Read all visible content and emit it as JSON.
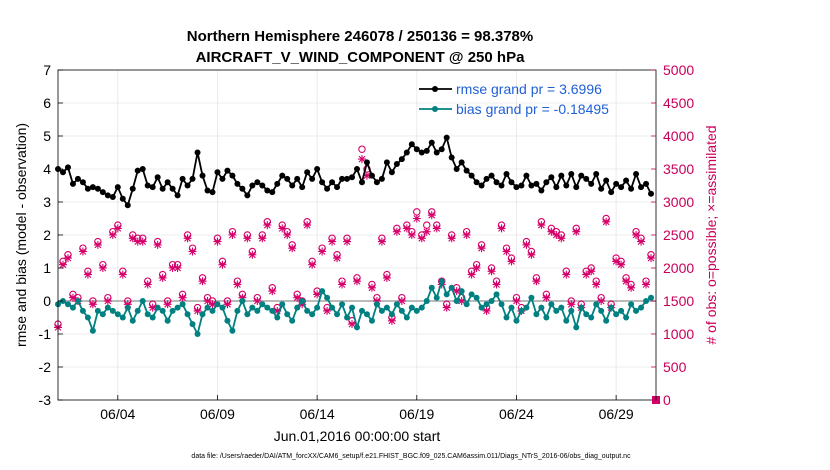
{
  "chart_data": {
    "type": "line",
    "title": "Northern Hemisphere 246078 / 250136 = 98.378%",
    "subtitle": "AIRCRAFT_V_WIND_COMPONENT @ 250 hPa",
    "xlabel": "Jun.01,2016 00:00:00 start",
    "ylabel": "rmse and bias (model - observation)",
    "y2label": "# of obs: o=possible; ×=assimilated",
    "footnote": "data file: /Users/raeder/DAI/ATM_forcXX/CAM6_setup/f.e21.FHIST_BGC.f09_025.CAM6assim.011/Diags_NTrS_2016-06/obs_diag_output.nc",
    "xlim": [
      1.0,
      31.0
    ],
    "ylim": [
      -3,
      7
    ],
    "y2lim": [
      0,
      5000
    ],
    "x_ticks": [
      4,
      9,
      14,
      19,
      24,
      29
    ],
    "x_tick_labels": [
      "06/04",
      "06/09",
      "06/14",
      "06/19",
      "06/24",
      "06/29"
    ],
    "y_ticks": [
      -3,
      -2,
      -1,
      0,
      1,
      2,
      3,
      4,
      5,
      6,
      7
    ],
    "y2_ticks": [
      0,
      500,
      1000,
      1500,
      2000,
      2500,
      3000,
      3500,
      4000,
      4500,
      5000
    ],
    "legend": {
      "position": "top-right",
      "entries": [
        "rmse grand pr = 3.6996",
        "bias grand pr = -0.18495"
      ]
    },
    "colors": {
      "rmse": "#000000",
      "bias": "#008080",
      "obs": "#d6006a",
      "zero_line": "#b0b0b0",
      "legend_text": "#1f5fd6"
    },
    "series": [
      {
        "name": "rmse",
        "x": [
          1.0,
          1.25,
          1.5,
          1.75,
          2.0,
          2.25,
          2.5,
          2.75,
          3.0,
          3.25,
          3.5,
          3.75,
          4.0,
          4.25,
          4.5,
          4.75,
          5.0,
          5.25,
          5.5,
          5.75,
          6.0,
          6.25,
          6.5,
          6.75,
          7.0,
          7.25,
          7.5,
          7.75,
          8.0,
          8.25,
          8.5,
          8.75,
          9.0,
          9.25,
          9.5,
          9.75,
          10.0,
          10.25,
          10.5,
          10.75,
          11.0,
          11.25,
          11.5,
          11.75,
          12.0,
          12.25,
          12.5,
          12.75,
          13.0,
          13.25,
          13.5,
          13.75,
          14.0,
          14.25,
          14.5,
          14.75,
          15.0,
          15.25,
          15.5,
          15.75,
          16.0,
          16.25,
          16.5,
          16.75,
          17.0,
          17.25,
          17.5,
          17.75,
          18.0,
          18.25,
          18.5,
          18.75,
          19.0,
          19.25,
          19.5,
          19.75,
          20.0,
          20.25,
          20.5,
          20.75,
          21.0,
          21.25,
          21.5,
          21.75,
          22.0,
          22.25,
          22.5,
          22.75,
          23.0,
          23.25,
          23.5,
          23.75,
          24.0,
          24.25,
          24.5,
          24.75,
          25.0,
          25.25,
          25.5,
          25.75,
          26.0,
          26.25,
          26.5,
          26.75,
          27.0,
          27.25,
          27.5,
          27.75,
          28.0,
          28.25,
          28.5,
          28.75,
          29.0,
          29.25,
          29.5,
          29.75,
          30.0,
          30.25,
          30.5,
          30.75
        ],
        "values": [
          4.0,
          3.9,
          4.05,
          3.55,
          3.7,
          3.6,
          3.4,
          3.45,
          3.4,
          3.3,
          3.2,
          3.15,
          3.45,
          3.1,
          2.9,
          3.4,
          3.95,
          4.0,
          3.5,
          3.45,
          3.75,
          3.4,
          3.6,
          3.4,
          3.2,
          3.7,
          3.5,
          3.7,
          4.5,
          3.8,
          3.35,
          3.3,
          3.9,
          3.7,
          3.95,
          3.8,
          3.55,
          3.4,
          3.2,
          3.5,
          3.6,
          3.5,
          3.35,
          3.3,
          3.55,
          3.8,
          3.7,
          3.5,
          3.7,
          3.45,
          3.9,
          3.7,
          4.0,
          3.6,
          3.4,
          3.6,
          3.45,
          3.7,
          3.7,
          3.75,
          4.0,
          3.6,
          4.2,
          3.8,
          3.6,
          3.7,
          4.2,
          3.9,
          4.15,
          4.3,
          4.5,
          4.75,
          4.6,
          4.5,
          4.55,
          4.8,
          4.5,
          4.6,
          4.95,
          4.35,
          4.0,
          4.2,
          3.95,
          3.8,
          3.6,
          3.5,
          3.7,
          3.8,
          3.6,
          3.5,
          3.85,
          3.6,
          3.45,
          3.5,
          3.8,
          3.5,
          3.55,
          3.35,
          3.6,
          3.75,
          3.45,
          3.8,
          3.5,
          3.85,
          3.45,
          3.8,
          3.7,
          3.55,
          3.85,
          3.4,
          3.65,
          3.3,
          3.55,
          3.45,
          3.65,
          3.4,
          3.85,
          3.45,
          3.55,
          3.25
        ]
      },
      {
        "name": "bias",
        "x": [
          1.0,
          1.25,
          1.5,
          1.75,
          2.0,
          2.25,
          2.5,
          2.75,
          3.0,
          3.25,
          3.5,
          3.75,
          4.0,
          4.25,
          4.5,
          4.75,
          5.0,
          5.25,
          5.5,
          5.75,
          6.0,
          6.25,
          6.5,
          6.75,
          7.0,
          7.25,
          7.5,
          7.75,
          8.0,
          8.25,
          8.5,
          8.75,
          9.0,
          9.25,
          9.5,
          9.75,
          10.0,
          10.25,
          10.5,
          10.75,
          11.0,
          11.25,
          11.5,
          11.75,
          12.0,
          12.25,
          12.5,
          12.75,
          13.0,
          13.25,
          13.5,
          13.75,
          14.0,
          14.25,
          14.5,
          14.75,
          15.0,
          15.25,
          15.5,
          15.75,
          16.0,
          16.25,
          16.5,
          16.75,
          17.0,
          17.25,
          17.5,
          17.75,
          18.0,
          18.25,
          18.5,
          18.75,
          19.0,
          19.25,
          19.5,
          19.75,
          20.0,
          20.25,
          20.5,
          20.75,
          21.0,
          21.25,
          21.5,
          21.75,
          22.0,
          22.25,
          22.5,
          22.75,
          23.0,
          23.25,
          23.5,
          23.75,
          24.0,
          24.25,
          24.5,
          24.75,
          25.0,
          25.25,
          25.5,
          25.75,
          26.0,
          26.25,
          26.5,
          26.75,
          27.0,
          27.25,
          27.5,
          27.75,
          28.0,
          28.25,
          28.5,
          28.75,
          29.0,
          29.25,
          29.5,
          29.75,
          30.0,
          30.25,
          30.5,
          30.75
        ],
        "values": [
          -0.1,
          0.0,
          -0.1,
          -0.2,
          0.0,
          -0.3,
          -0.5,
          -0.9,
          -0.3,
          -0.4,
          -0.2,
          -0.3,
          -0.4,
          -0.5,
          -0.2,
          -0.6,
          -0.3,
          0.0,
          -0.4,
          -0.5,
          -0.2,
          -0.3,
          -0.6,
          -0.3,
          -0.2,
          -0.1,
          -0.4,
          -0.7,
          -1.0,
          -0.4,
          -0.2,
          -0.3,
          -0.1,
          -0.2,
          -0.6,
          -0.9,
          -0.3,
          0.0,
          -0.4,
          -0.2,
          -0.3,
          -0.1,
          -0.2,
          -0.3,
          -0.5,
          -0.1,
          -0.4,
          -0.6,
          -0.2,
          0.0,
          -0.3,
          -0.4,
          -0.2,
          0.3,
          0.1,
          -0.2,
          -0.4,
          -0.1,
          -0.5,
          -0.2,
          -0.8,
          -0.3,
          -0.4,
          -0.6,
          -0.1,
          -0.3,
          -0.2,
          -0.4,
          -0.1,
          -0.3,
          -0.5,
          -0.2,
          -0.3,
          -0.2,
          0.0,
          0.4,
          0.1,
          0.6,
          0.2,
          0.4,
          0.0,
          0.3,
          -0.1,
          0.2,
          0.1,
          -0.2,
          -0.1,
          0.0,
          0.2,
          -0.1,
          -0.5,
          -0.2,
          -0.6,
          -0.3,
          -0.2,
          0.1,
          -0.4,
          -0.2,
          -0.5,
          -0.1,
          -0.3,
          -0.2,
          -0.6,
          -0.3,
          -0.8,
          -0.2,
          -0.4,
          -0.5,
          -0.1,
          -0.3,
          -0.6,
          -0.2,
          -0.4,
          -0.3,
          -0.5,
          -0.1,
          -0.3,
          -0.2,
          0.0,
          0.1
        ]
      },
      {
        "name": "obs_possible",
        "x": [
          1.0,
          1.25,
          1.5,
          1.75,
          2.0,
          2.25,
          2.5,
          2.75,
          3.0,
          3.25,
          3.5,
          3.75,
          4.0,
          4.25,
          4.5,
          4.75,
          5.0,
          5.25,
          5.5,
          5.75,
          6.0,
          6.25,
          6.5,
          6.75,
          7.0,
          7.25,
          7.5,
          7.75,
          8.0,
          8.25,
          8.5,
          8.75,
          9.0,
          9.25,
          9.5,
          9.75,
          10.0,
          10.25,
          10.5,
          10.75,
          11.0,
          11.25,
          11.5,
          11.75,
          12.0,
          12.25,
          12.5,
          12.75,
          13.0,
          13.25,
          13.5,
          13.75,
          14.0,
          14.25,
          14.5,
          14.75,
          15.0,
          15.25,
          15.5,
          15.75,
          16.0,
          16.25,
          16.5,
          16.75,
          17.0,
          17.25,
          17.5,
          17.75,
          18.0,
          18.25,
          18.5,
          18.75,
          19.0,
          19.25,
          19.5,
          19.75,
          20.0,
          20.25,
          20.5,
          20.75,
          21.0,
          21.25,
          21.5,
          21.75,
          22.0,
          22.25,
          22.5,
          22.75,
          23.0,
          23.25,
          23.5,
          23.75,
          24.0,
          24.25,
          24.5,
          24.75,
          25.0,
          25.25,
          25.5,
          25.75,
          26.0,
          26.25,
          26.5,
          26.75,
          27.0,
          27.25,
          27.5,
          27.75,
          28.0,
          28.25,
          28.5,
          28.75,
          29.0,
          29.25,
          29.5,
          29.75,
          30.0,
          30.25,
          30.5,
          30.75
        ],
        "values": [
          1150,
          2100,
          2200,
          1600,
          1550,
          2300,
          1950,
          1500,
          2400,
          2050,
          1550,
          2550,
          2650,
          1950,
          1500,
          2500,
          2450,
          2450,
          1800,
          1450,
          2400,
          1900,
          1500,
          2050,
          2050,
          1600,
          2500,
          2300,
          1400,
          1850,
          1550,
          1500,
          2450,
          2100,
          1500,
          2550,
          1800,
          1600,
          2500,
          2250,
          1550,
          2500,
          2700,
          1700,
          1400,
          2650,
          2550,
          2350,
          1600,
          1500,
          2700,
          2100,
          1650,
          2300,
          1400,
          2450,
          2200,
          1800,
          2450,
          1200,
          1850,
          3800,
          3500,
          1750,
          1550,
          2450,
          1900,
          1250,
          2600,
          1550,
          2650,
          2550,
          2850,
          2500,
          2650,
          2850,
          2650,
          1800,
          1450,
          2500,
          1700,
          1550,
          2550,
          1950,
          2050,
          2350,
          1400,
          2000,
          1800,
          2650,
          2300,
          2150,
          1550,
          1400,
          2400,
          2250,
          1850,
          2700,
          1600,
          2600,
          2550,
          2500,
          1950,
          1500,
          2600,
          1450,
          1950,
          2000,
          1800,
          1550,
          2750,
          1450,
          2150,
          2100,
          1850,
          1750,
          2550,
          2450,
          1800,
          2200
        ]
      },
      {
        "name": "obs_assimilated",
        "x": [
          1.0,
          1.25,
          1.5,
          1.75,
          2.0,
          2.25,
          2.5,
          2.75,
          3.0,
          3.25,
          3.5,
          3.75,
          4.0,
          4.25,
          4.5,
          4.75,
          5.0,
          5.25,
          5.5,
          5.75,
          6.0,
          6.25,
          6.5,
          6.75,
          7.0,
          7.25,
          7.5,
          7.75,
          8.0,
          8.25,
          8.5,
          8.75,
          9.0,
          9.25,
          9.5,
          9.75,
          10.0,
          10.25,
          10.5,
          10.75,
          11.0,
          11.25,
          11.5,
          11.75,
          12.0,
          12.25,
          12.5,
          12.75,
          13.0,
          13.25,
          13.5,
          13.75,
          14.0,
          14.25,
          14.5,
          14.75,
          15.0,
          15.25,
          15.5,
          15.75,
          16.0,
          16.25,
          16.5,
          16.75,
          17.0,
          17.25,
          17.5,
          17.75,
          18.0,
          18.25,
          18.5,
          18.75,
          19.0,
          19.25,
          19.5,
          19.75,
          20.0,
          20.25,
          20.5,
          20.75,
          21.0,
          21.25,
          21.5,
          21.75,
          22.0,
          22.25,
          22.5,
          22.75,
          23.0,
          23.25,
          23.5,
          23.75,
          24.0,
          24.25,
          24.5,
          24.75,
          25.0,
          25.25,
          25.5,
          25.75,
          26.0,
          26.25,
          26.5,
          26.75,
          27.0,
          27.25,
          27.5,
          27.75,
          28.0,
          28.25,
          28.5,
          28.75,
          29.0,
          29.25,
          29.5,
          29.75,
          30.0,
          30.25,
          30.5,
          30.75
        ],
        "values": [
          1100,
          2050,
          2150,
          1550,
          1500,
          2250,
          1900,
          1450,
          2350,
          2000,
          1500,
          2500,
          2600,
          1900,
          1450,
          2450,
          2400,
          2400,
          1750,
          1400,
          2350,
          1850,
          1450,
          2000,
          2000,
          1550,
          2450,
          2250,
          1350,
          1800,
          1500,
          1450,
          2400,
          2050,
          1450,
          2500,
          1750,
          1550,
          2450,
          2200,
          1500,
          2450,
          2650,
          1650,
          1350,
          2600,
          2500,
          2300,
          1550,
          1450,
          2650,
          2050,
          1600,
          2250,
          1350,
          2400,
          2150,
          1750,
          2400,
          1150,
          1800,
          3650,
          3400,
          1700,
          1500,
          2400,
          1850,
          1200,
          2550,
          1500,
          2600,
          2500,
          2750,
          2450,
          2550,
          2800,
          2600,
          1750,
          1400,
          2450,
          1650,
          1500,
          2500,
          1900,
          2000,
          2300,
          1350,
          1950,
          1750,
          2600,
          2250,
          2100,
          1500,
          1350,
          2350,
          2200,
          1800,
          2650,
          1550,
          2550,
          2500,
          2450,
          1900,
          1450,
          2550,
          1400,
          1900,
          1950,
          1750,
          1500,
          2700,
          1400,
          2100,
          2050,
          1800,
          1700,
          2500,
          2400,
          1750,
          2150
        ]
      }
    ]
  }
}
